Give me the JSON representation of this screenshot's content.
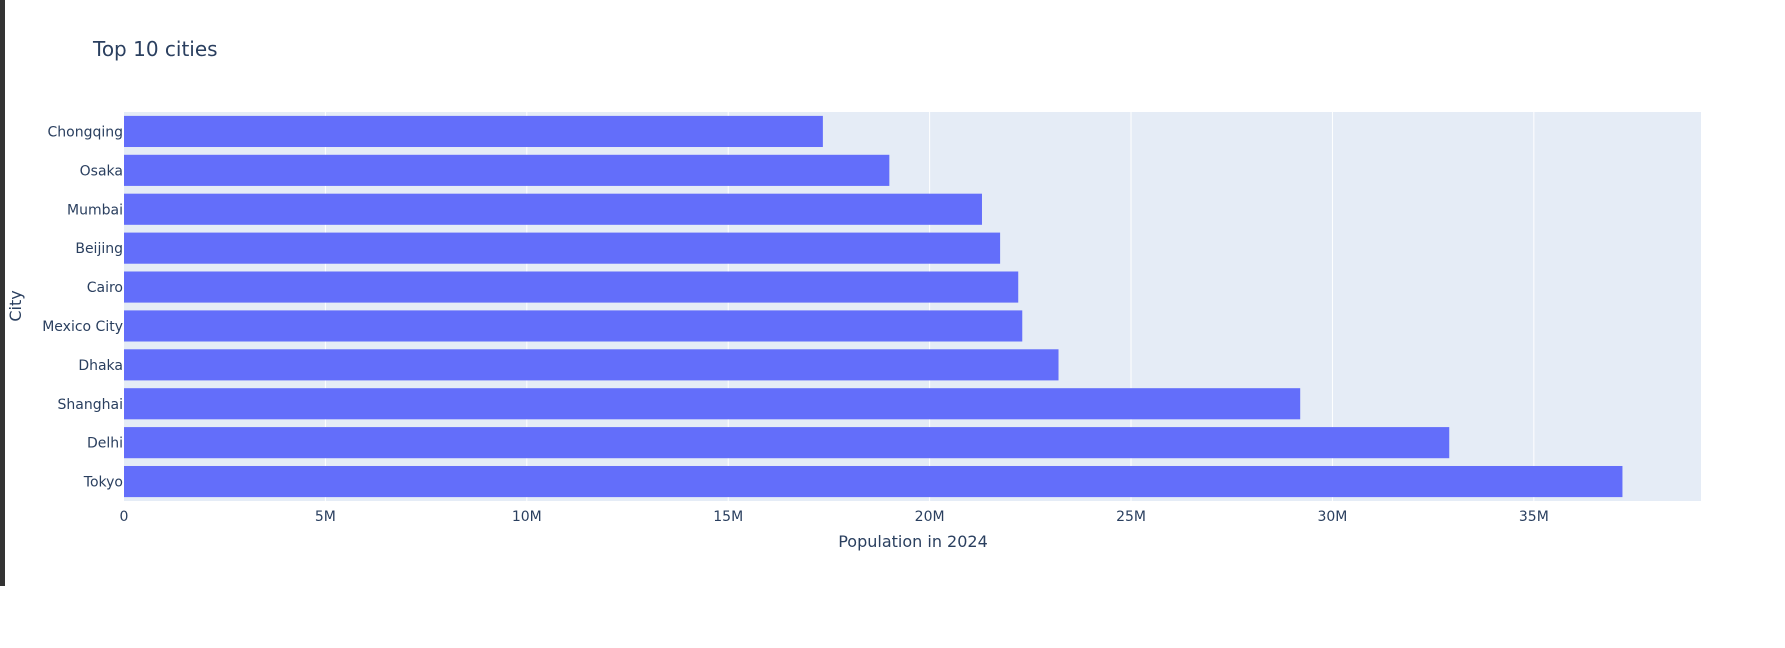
{
  "chart_data": {
    "type": "bar",
    "orientation": "horizontal",
    "title": "Top 10 cities",
    "xlabel": "Population in 2024",
    "ylabel": "City",
    "categories": [
      "Tokyo",
      "Delhi",
      "Shanghai",
      "Dhaka",
      "Mexico City",
      "Cairo",
      "Beijing",
      "Mumbai",
      "Osaka",
      "Chongqing"
    ],
    "values": [
      37200000,
      32900000,
      29200000,
      23200000,
      22300000,
      22200000,
      21750000,
      21300000,
      19000000,
      17350000
    ],
    "xlim": [
      0,
      39150000
    ],
    "xticks": [
      0,
      5000000,
      10000000,
      15000000,
      20000000,
      25000000,
      30000000,
      35000000
    ],
    "xtick_labels": [
      "0",
      "5M",
      "10M",
      "15M",
      "20M",
      "25M",
      "30M",
      "35M"
    ],
    "grid": true,
    "colors": {
      "bar": "#636efa",
      "plot_background": "#e5ecf6",
      "gridline": "#ffffff",
      "text": "#2a3f5f"
    }
  }
}
